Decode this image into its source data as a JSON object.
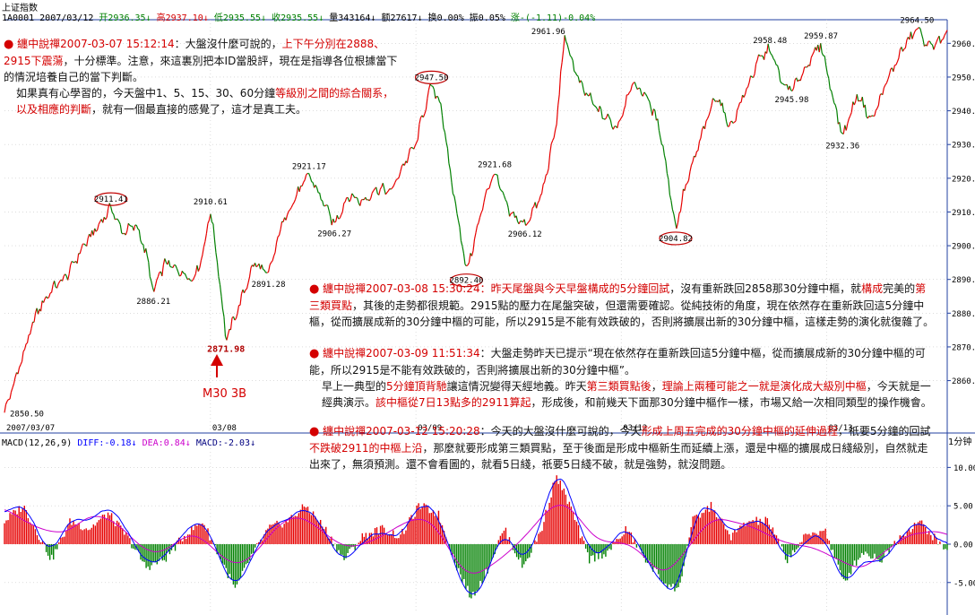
{
  "header": {
    "title": "上证指数",
    "code": "1A0001",
    "date": "2007/03/12",
    "open_label": "开",
    "open": "2936.35",
    "high_label": "高",
    "high": "2937.10",
    "low_label": "低",
    "low": "2935.55",
    "close_label": "收",
    "close": "2935.55",
    "volume_label": "量",
    "volume": "343164",
    "amount_label": "额",
    "amount": "27617",
    "turnover_label": "换",
    "turnover": "0.00%",
    "amplitude_label": "振",
    "amplitude": "0.05%",
    "change_label": "涨",
    "change": "-(-1.11)-0.04%"
  },
  "macd_header": {
    "name": "MACD(12,26,9)",
    "diff_label": "DIFF:",
    "diff": "-0.18",
    "dea_label": "DEA:",
    "dea": "0.84",
    "macd_label": "MACD:",
    "macd": "-2.03"
  },
  "period_label": "1分钟",
  "colors": {
    "up": "#e60000",
    "down": "#008000",
    "diff": "#0000ff",
    "dea": "#cc00cc",
    "annotation": "#cc0000",
    "text": "#111111"
  },
  "annotations": {
    "a1": {
      "bullet": "●",
      "title": "纏中說禪2007-03-07 15:12:14",
      "t1": "：大盤沒什麼可說的，",
      "r1": "上下午分別在2888、2915下震蕩",
      "t2": "，十分標準。注意，來這裏別把本ID當股評，現在是指導各位根據當下的情況培養自己的當下判斷。",
      "t3": "如果真有心學習的，今天盤中1、5、15、30、60分鐘",
      "r2": "等級別之間的綜合關系，以及相應的判斷",
      "t4": "，就有一個最直接的感覺了，這才是真工夫。"
    },
    "a2": {
      "bullet": "●",
      "title": "纏中說禪2007-03-08 15:30:24",
      "r1": "：昨天尾盤與今天早盤構成的5分鐘回試",
      "t1": "，沒有重新跌回2858那30分鐘中樞，就",
      "r2": "構成",
      "t2": "完美的",
      "r3": "第三類買點",
      "t3": "，其後的走勢都很規範。2915點的壓力在尾盤突破，但還需要確認。從純技術的角度，現在依然存在重新跌回這5分鐘中樞，從而擴展成新的30分鐘中樞的可能，所以2915是不能有效跌破的，否則將擴展出新的30分鐘中樞，這樣走勢的演化就復雜了。"
    },
    "a3": {
      "bullet": "●",
      "title": "纏中說禪2007-03-09 11:51:34",
      "t1": "：大盤走勢昨天已提示“現在依然存在重新跌回這5分鐘中樞，從而擴展成新的30分鐘中樞的可能，所以2915是不能有效跌破的，否則將擴展出新的30分鐘中樞”。",
      "t2": "早上一典型的",
      "r1": "5分鐘頂背馳",
      "t3": "讓這情況變得天經地義。昨天",
      "r2": "第三類買點後",
      "t4": "，",
      "r3": "理論上兩種可能之一就是演化成大級別中樞",
      "t5": "，今天就是一經典演示。",
      "r4": "該中樞從7日13點多的2911算起",
      "t6": "，形成後，和前幾天下面那30分鐘中樞作一樣，市場又給一次相同類型的操作機會。"
    },
    "a4": {
      "bullet": "●",
      "title": "纏中說禪2007-03-12 15:20:28",
      "t1": "：今天的大盤沒什麼可說的，今天",
      "r1": "形成上周五完成的30分鐘中樞的延伸過程",
      "t2": "，祇要5分鐘的回試",
      "r2": "不跌破2911的中樞上沿",
      "t3": "，那麼就要形成第三類買點，至于後面是形成中樞新生而延續上漲，還是中樞的擴展成日綫級別，自然就走出來了，無須預測。還不會看圖的，就看5日綫，祇要5日綫不破，就是強勢，就沒問題。"
    }
  },
  "m30_label": "M30 3B",
  "chart_data": {
    "type": "line",
    "title": "上证指数",
    "price_axis": {
      "ylim": [
        2845,
        2967
      ],
      "ticks": [
        2860,
        2870,
        2880,
        2890,
        2900,
        2910,
        2920,
        2930,
        2940,
        2950,
        2960
      ],
      "tick_labels": [
        "2860.00",
        "2870.00",
        "2880.00",
        "2890.00",
        "2900.00",
        "2910.00",
        "2920.00",
        "2930.00",
        "2940.00",
        "2950.00",
        "2960.00"
      ]
    },
    "macd_axis": {
      "ylim": [
        -9,
        12.5
      ],
      "ticks": [
        -5,
        0,
        5,
        10
      ],
      "tick_labels": [
        "-5.00",
        "0.00",
        "5.00",
        "10.00"
      ]
    },
    "dates": [
      {
        "label": "2007/03/07",
        "t": 0.0
      },
      {
        "label": "03/08",
        "t": 0.2185
      },
      {
        "label": "03/09",
        "t": 0.4364
      },
      {
        "label": "03/12",
        "t": 0.6542
      },
      {
        "label": "03/13",
        "t": 0.8721
      }
    ],
    "price_points": [
      {
        "t": 0.0,
        "v": 2850.5
      },
      {
        "t": 0.018,
        "v": 2866
      },
      {
        "t": 0.034,
        "v": 2880
      },
      {
        "t": 0.05,
        "v": 2887
      },
      {
        "t": 0.066,
        "v": 2891
      },
      {
        "t": 0.084,
        "v": 2900
      },
      {
        "t": 0.1,
        "v": 2906
      },
      {
        "t": 0.113,
        "v": 2911.41
      },
      {
        "t": 0.125,
        "v": 2904
      },
      {
        "t": 0.14,
        "v": 2906
      },
      {
        "t": 0.15,
        "v": 2898
      },
      {
        "t": 0.158,
        "v": 2886.21
      },
      {
        "t": 0.17,
        "v": 2895
      },
      {
        "t": 0.183,
        "v": 2893
      },
      {
        "t": 0.2,
        "v": 2890
      },
      {
        "t": 0.21,
        "v": 2897
      },
      {
        "t": 0.2185,
        "v": 2910.61
      },
      {
        "t": 0.227,
        "v": 2893
      },
      {
        "t": 0.235,
        "v": 2871.98
      },
      {
        "t": 0.25,
        "v": 2883
      },
      {
        "t": 0.265,
        "v": 2895
      },
      {
        "t": 0.28,
        "v": 2891.28
      },
      {
        "t": 0.295,
        "v": 2907
      },
      {
        "t": 0.31,
        "v": 2915
      },
      {
        "t": 0.323,
        "v": 2921.17
      },
      {
        "t": 0.338,
        "v": 2913
      },
      {
        "t": 0.35,
        "v": 2906.27
      },
      {
        "t": 0.365,
        "v": 2915
      },
      {
        "t": 0.38,
        "v": 2913
      },
      {
        "t": 0.395,
        "v": 2917
      },
      {
        "t": 0.41,
        "v": 2916
      },
      {
        "t": 0.425,
        "v": 2925
      },
      {
        "t": 0.4364,
        "v": 2930
      },
      {
        "t": 0.443,
        "v": 2938
      },
      {
        "t": 0.453,
        "v": 2947.5
      },
      {
        "t": 0.463,
        "v": 2942
      },
      {
        "t": 0.472,
        "v": 2923
      },
      {
        "t": 0.483,
        "v": 2905
      },
      {
        "t": 0.49,
        "v": 2892.4
      },
      {
        "t": 0.5,
        "v": 2903
      },
      {
        "t": 0.51,
        "v": 2915
      },
      {
        "t": 0.52,
        "v": 2921.68
      },
      {
        "t": 0.535,
        "v": 2910
      },
      {
        "t": 0.552,
        "v": 2906.12
      },
      {
        "t": 0.57,
        "v": 2915
      },
      {
        "t": 0.585,
        "v": 2935
      },
      {
        "t": 0.594,
        "v": 2961.96
      },
      {
        "t": 0.61,
        "v": 2948
      },
      {
        "t": 0.63,
        "v": 2940
      },
      {
        "t": 0.65,
        "v": 2935
      },
      {
        "t": 0.665,
        "v": 2948
      },
      {
        "t": 0.68,
        "v": 2945
      },
      {
        "t": 0.695,
        "v": 2935
      },
      {
        "t": 0.704,
        "v": 2920
      },
      {
        "t": 0.712,
        "v": 2904.82
      },
      {
        "t": 0.72,
        "v": 2915
      },
      {
        "t": 0.74,
        "v": 2933
      },
      {
        "t": 0.755,
        "v": 2945
      },
      {
        "t": 0.77,
        "v": 2935
      },
      {
        "t": 0.785,
        "v": 2945
      },
      {
        "t": 0.8,
        "v": 2955
      },
      {
        "t": 0.812,
        "v": 2958.48
      },
      {
        "t": 0.825,
        "v": 2948
      },
      {
        "t": 0.835,
        "v": 2945.98
      },
      {
        "t": 0.848,
        "v": 2952
      },
      {
        "t": 0.866,
        "v": 2959.87
      },
      {
        "t": 0.878,
        "v": 2945
      },
      {
        "t": 0.889,
        "v": 2932.36
      },
      {
        "t": 0.905,
        "v": 2945
      },
      {
        "t": 0.92,
        "v": 2937
      },
      {
        "t": 0.935,
        "v": 2948
      },
      {
        "t": 0.952,
        "v": 2958
      },
      {
        "t": 0.968,
        "v": 2964.5
      },
      {
        "t": 0.98,
        "v": 2959
      },
      {
        "t": 1.0,
        "v": 2962
      }
    ],
    "price_labels": [
      {
        "t": 0.0,
        "v": 2850.5,
        "text": "2850.50",
        "pos": "right",
        "circle": false
      },
      {
        "t": 0.113,
        "v": 2911.41,
        "text": "2911.41",
        "pos": "above",
        "circle": true
      },
      {
        "t": 0.158,
        "v": 2886.21,
        "text": "2886.21",
        "pos": "below",
        "circle": false
      },
      {
        "t": 0.2185,
        "v": 2910.61,
        "text": "2910.61",
        "pos": "above",
        "circle": false
      },
      {
        "t": 0.235,
        "v": 2871.98,
        "text": "2871.98",
        "pos": "below",
        "circle": false,
        "red": true
      },
      {
        "t": 0.28,
        "v": 2891.28,
        "text": "2891.28",
        "pos": "below",
        "circle": false
      },
      {
        "t": 0.323,
        "v": 2921.17,
        "text": "2921.17",
        "pos": "above",
        "circle": false
      },
      {
        "t": 0.35,
        "v": 2906.27,
        "text": "2906.27",
        "pos": "below",
        "circle": false
      },
      {
        "t": 0.453,
        "v": 2947.5,
        "text": "2947.50",
        "pos": "above",
        "circle": true
      },
      {
        "t": 0.49,
        "v": 2892.4,
        "text": "2892.40",
        "pos": "below",
        "circle": true
      },
      {
        "t": 0.52,
        "v": 2921.68,
        "text": "2921.68",
        "pos": "above",
        "circle": false
      },
      {
        "t": 0.552,
        "v": 2906.12,
        "text": "2906.12",
        "pos": "below",
        "circle": false
      },
      {
        "t": 0.594,
        "v": 2961.96,
        "text": "2961.96",
        "pos": "above-left",
        "circle": false
      },
      {
        "t": 0.712,
        "v": 2904.82,
        "text": "2904.82",
        "pos": "below",
        "circle": true
      },
      {
        "t": 0.812,
        "v": 2958.48,
        "text": "2958.48",
        "pos": "above",
        "circle": false
      },
      {
        "t": 0.835,
        "v": 2945.98,
        "text": "2945.98",
        "pos": "below",
        "circle": false
      },
      {
        "t": 0.866,
        "v": 2959.87,
        "text": "2959.87",
        "pos": "above",
        "circle": false
      },
      {
        "t": 0.889,
        "v": 2932.36,
        "text": "2932.36",
        "pos": "below",
        "circle": false
      },
      {
        "t": 0.968,
        "v": 2964.5,
        "text": "2964.50",
        "pos": "above",
        "circle": false
      }
    ],
    "macd_points": [
      {
        "t": 0.0,
        "v": 3
      },
      {
        "t": 0.02,
        "v": 5
      },
      {
        "t": 0.035,
        "v": 1.5
      },
      {
        "t": 0.05,
        "v": -2
      },
      {
        "t": 0.07,
        "v": 3
      },
      {
        "t": 0.09,
        "v": 2
      },
      {
        "t": 0.11,
        "v": 4
      },
      {
        "t": 0.13,
        "v": 1
      },
      {
        "t": 0.15,
        "v": -3
      },
      {
        "t": 0.17,
        "v": -2
      },
      {
        "t": 0.19,
        "v": 1
      },
      {
        "t": 0.21,
        "v": 3
      },
      {
        "t": 0.23,
        "v": -2
      },
      {
        "t": 0.245,
        "v": -6
      },
      {
        "t": 0.26,
        "v": -2
      },
      {
        "t": 0.28,
        "v": 2
      },
      {
        "t": 0.3,
        "v": 3
      },
      {
        "t": 0.32,
        "v": 5
      },
      {
        "t": 0.34,
        "v": 2
      },
      {
        "t": 0.36,
        "v": -2
      },
      {
        "t": 0.38,
        "v": 1
      },
      {
        "t": 0.4,
        "v": 2
      },
      {
        "t": 0.42,
        "v": 1
      },
      {
        "t": 0.44,
        "v": 5
      },
      {
        "t": 0.46,
        "v": 4
      },
      {
        "t": 0.48,
        "v": -3
      },
      {
        "t": 0.495,
        "v": -7
      },
      {
        "t": 0.51,
        "v": -4
      },
      {
        "t": 0.53,
        "v": 2
      },
      {
        "t": 0.55,
        "v": -3
      },
      {
        "t": 0.57,
        "v": 2
      },
      {
        "t": 0.585,
        "v": 9
      },
      {
        "t": 0.6,
        "v": 5
      },
      {
        "t": 0.62,
        "v": -2
      },
      {
        "t": 0.64,
        "v": -1
      },
      {
        "t": 0.66,
        "v": 2
      },
      {
        "t": 0.68,
        "v": -2
      },
      {
        "t": 0.7,
        "v": -5
      },
      {
        "t": 0.715,
        "v": -6
      },
      {
        "t": 0.73,
        "v": 3
      },
      {
        "t": 0.75,
        "v": 5
      },
      {
        "t": 0.77,
        "v": 1
      },
      {
        "t": 0.79,
        "v": 3
      },
      {
        "t": 0.81,
        "v": 3
      },
      {
        "t": 0.83,
        "v": -2
      },
      {
        "t": 0.85,
        "v": 1
      },
      {
        "t": 0.87,
        "v": 2
      },
      {
        "t": 0.89,
        "v": -5
      },
      {
        "t": 0.91,
        "v": -1
      },
      {
        "t": 0.93,
        "v": -2
      },
      {
        "t": 0.95,
        "v": 1
      },
      {
        "t": 0.97,
        "v": 3
      },
      {
        "t": 0.985,
        "v": 1
      },
      {
        "t": 1.0,
        "v": -1
      }
    ]
  }
}
